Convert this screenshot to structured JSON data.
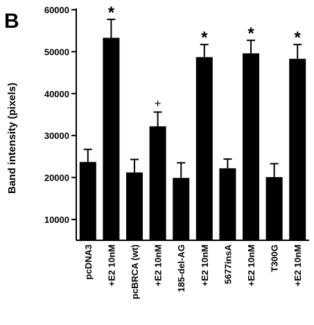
{
  "panel_label": "B",
  "chart_data": {
    "type": "bar",
    "title": "",
    "xlabel": "",
    "ylabel": "Band intensity (pixels)",
    "ylim": [
      5000,
      60000
    ],
    "yticks": [
      10000,
      20000,
      30000,
      40000,
      50000,
      60000
    ],
    "ytick_labels": [
      "10000",
      "20000",
      "30000",
      "40000",
      "50000",
      "60000"
    ],
    "grid": false,
    "colors": {
      "bar": "#000000",
      "axis": "#000000"
    },
    "categories": [
      "pcDNA3",
      "+E2 10nM",
      "pcBRCA (wt)",
      "+E2 10nM",
      "185-del-AG",
      "+E2 10nM",
      "5677insA",
      "+E2 10nM",
      "T300G",
      "+E2 10nM"
    ],
    "values": [
      23700,
      53300,
      21200,
      32200,
      19900,
      48700,
      22200,
      49600,
      20100,
      48300
    ],
    "errors": [
      3000,
      4400,
      3100,
      3400,
      3600,
      3000,
      2200,
      3100,
      3200,
      3400
    ],
    "annotations": [
      "",
      "*",
      "",
      "+",
      "",
      "*",
      "",
      "*",
      "",
      "*"
    ]
  }
}
